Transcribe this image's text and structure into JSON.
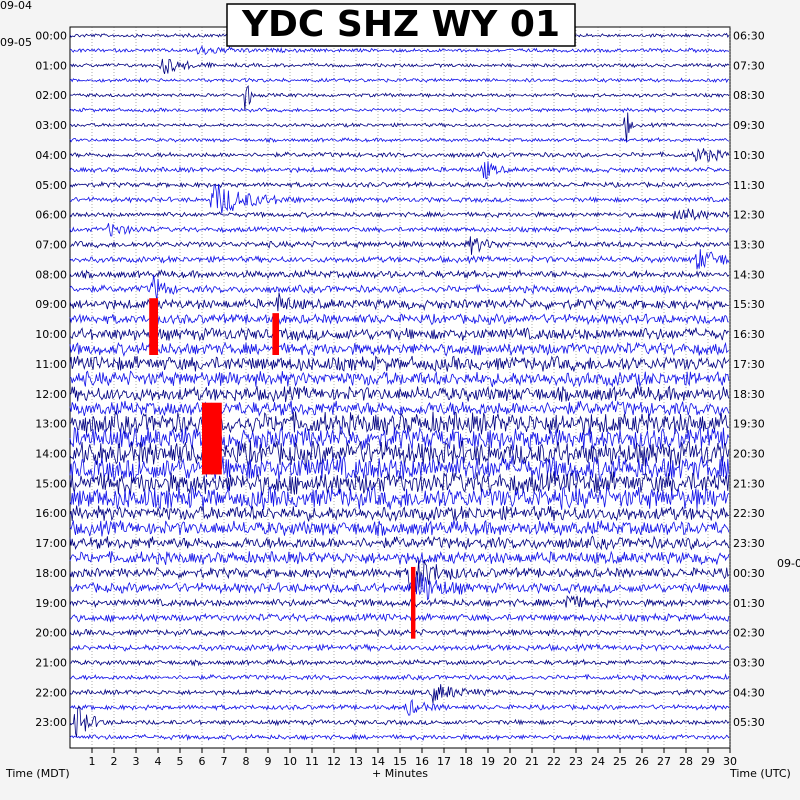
{
  "chart_data": {
    "type": "helicorder",
    "title": "YDC SHZ WY 01",
    "xlabel": "+ Minutes",
    "left_axis_label": "Time (MDT)",
    "right_axis_label": "Time (UTC)",
    "x_ticks": [
      1,
      2,
      3,
      4,
      5,
      6,
      7,
      8,
      9,
      10,
      11,
      12,
      13,
      14,
      15,
      16,
      17,
      18,
      19,
      20,
      21,
      22,
      23,
      24,
      25,
      26,
      27,
      28,
      29,
      30
    ],
    "xlim": [
      0,
      30
    ],
    "left_date_top": "09-04",
    "left_date": "09-05",
    "right_date_marker": "09-0",
    "left_hours": [
      "00:00",
      "01:00",
      "02:00",
      "03:00",
      "04:00",
      "05:00",
      "06:00",
      "07:00",
      "08:00",
      "09:00",
      "10:00",
      "11:00",
      "12:00",
      "13:00",
      "14:00",
      "15:00",
      "16:00",
      "17:00",
      "18:00",
      "19:00",
      "20:00",
      "21:00",
      "22:00",
      "23:00"
    ],
    "right_hours": [
      "06:30",
      "07:30",
      "08:30",
      "09:30",
      "10:30",
      "11:30",
      "12:30",
      "13:30",
      "14:30",
      "15:30",
      "16:30",
      "17:30",
      "18:30",
      "19:30",
      "20:30",
      "21:30",
      "22:30",
      "23:30",
      "00:30",
      "01:30",
      "02:30",
      "03:30",
      "04:30",
      "05:30"
    ],
    "rows_per_hour": 2,
    "trace_colors": [
      "#000080",
      "#1010e8"
    ],
    "clip_color": "#ff0000",
    "noise_amplitude_by_hour": [
      1.5,
      1.5,
      1.5,
      1.5,
      2,
      2,
      2,
      2.5,
      3,
      4,
      5,
      6,
      6,
      9,
      10,
      9,
      6,
      5,
      4,
      3,
      2.5,
      2,
      2,
      2
    ],
    "events": [
      {
        "row": 0,
        "minute": 9.5,
        "amp": 5,
        "dur": 2.5
      },
      {
        "row": 1,
        "minute": 5.8,
        "amp": 4,
        "dur": 4
      },
      {
        "row": 2,
        "minute": 4.2,
        "amp": 9,
        "dur": 2.5
      },
      {
        "row": 4,
        "minute": 8.0,
        "amp": 25,
        "dur": 0.4
      },
      {
        "row": 6,
        "minute": 25.3,
        "amp": 18,
        "dur": 0.4
      },
      {
        "row": 8,
        "minute": 28.5,
        "amp": 8,
        "dur": 2.5
      },
      {
        "row": 9,
        "minute": 18.8,
        "amp": 11,
        "dur": 1.2
      },
      {
        "row": 11,
        "minute": 6.5,
        "amp": 18,
        "dur": 4
      },
      {
        "row": 12,
        "minute": 27.5,
        "amp": 8,
        "dur": 3
      },
      {
        "row": 13,
        "minute": 1.8,
        "amp": 7,
        "dur": 2
      },
      {
        "row": 14,
        "minute": 18.2,
        "amp": 8,
        "dur": 2
      },
      {
        "row": 15,
        "minute": 28.5,
        "amp": 10,
        "dur": 3
      },
      {
        "row": 17,
        "minute": 3.8,
        "amp": 14,
        "dur": 1.2
      },
      {
        "row": 18,
        "minute": 9.5,
        "amp": 9,
        "dur": 1.2
      },
      {
        "row": 36,
        "minute": 15.5,
        "amp": 22,
        "dur": 2.5
      },
      {
        "row": 37,
        "minute": 15.6,
        "amp": 20,
        "dur": 2.5
      },
      {
        "row": 38,
        "minute": 22.5,
        "amp": 8,
        "dur": 2
      },
      {
        "row": 44,
        "minute": 16.5,
        "amp": 9,
        "dur": 3
      },
      {
        "row": 45,
        "minute": 15.3,
        "amp": 8,
        "dur": 2
      },
      {
        "row": 46,
        "minute": 0.2,
        "amp": 22,
        "dur": 1.5
      }
    ],
    "clipped_events": [
      {
        "row_start": 18,
        "row_end": 21,
        "minute_start": 3.6,
        "minute_end": 4.0
      },
      {
        "row_start": 19,
        "row_end": 21,
        "minute_start": 9.2,
        "minute_end": 9.5
      },
      {
        "row_start": 25,
        "row_end": 29,
        "minute_start": 6.0,
        "minute_end": 6.9
      },
      {
        "row_start": 36,
        "row_end": 40,
        "minute_start": 15.5,
        "minute_end": 15.7
      }
    ]
  }
}
